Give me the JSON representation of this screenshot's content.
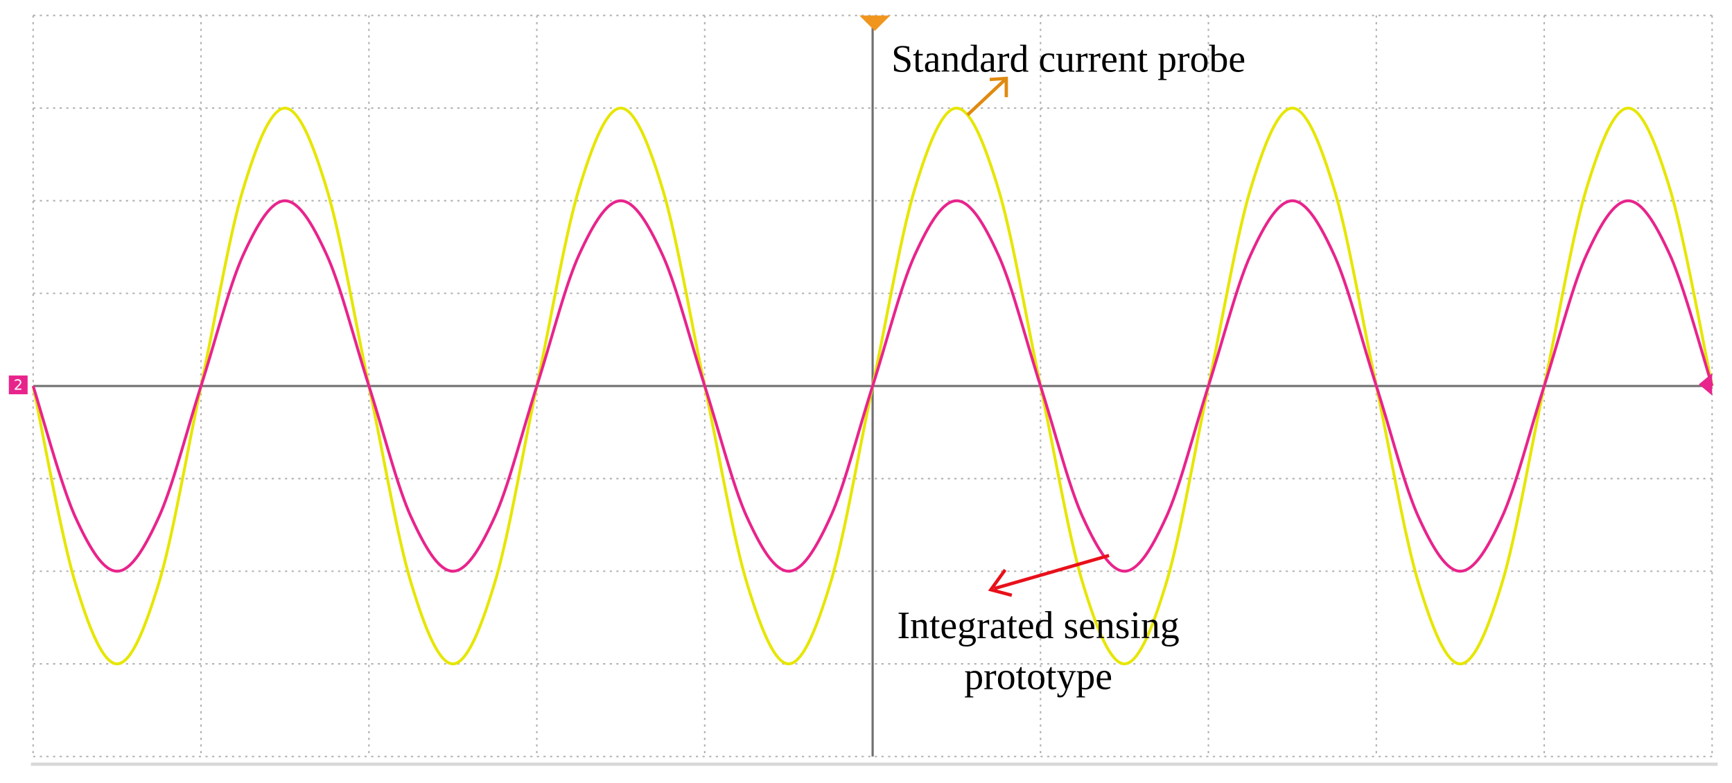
{
  "chart_data": {
    "type": "line",
    "x": [
      0,
      0.25,
      0.5,
      0.75,
      1,
      1.25,
      1.5,
      1.75,
      2,
      2.25,
      2.5,
      2.75,
      3,
      3.25,
      3.5,
      3.75,
      4,
      4.25,
      4.5,
      4.75,
      5,
      5.25,
      5.5,
      5.75,
      6,
      6.25,
      6.5,
      6.75,
      7,
      7.25,
      7.5,
      7.75,
      8,
      8.25,
      8.5,
      8.75,
      9,
      9.25,
      9.5,
      9.75,
      10
    ],
    "series": [
      {
        "name": "Standard current probe",
        "color": "#e6e600",
        "values": [
          0,
          -2.12,
          -3,
          -2.12,
          0,
          2.12,
          3,
          2.12,
          0,
          -2.12,
          -3,
          -2.12,
          0,
          2.12,
          3,
          2.12,
          0,
          -2.12,
          -3,
          -2.12,
          0,
          2.12,
          3,
          2.12,
          0,
          -2.12,
          -3,
          -2.12,
          0,
          2.12,
          3,
          2.12,
          0,
          -2.12,
          -3,
          -2.12,
          0,
          2.12,
          3,
          2.12,
          0
        ]
      },
      {
        "name": "Integrated sensing prototype",
        "lines": [
          "Integrated sensing",
          "prototype"
        ],
        "color": "#e8248c",
        "values": [
          0,
          -1.41,
          -2,
          -1.41,
          0,
          1.41,
          2,
          1.41,
          0,
          -1.41,
          -2,
          -1.41,
          0,
          1.41,
          2,
          1.41,
          0,
          -1.41,
          -2,
          -1.41,
          0,
          1.41,
          2,
          1.41,
          0,
          -1.41,
          -2,
          -1.41,
          0,
          1.41,
          2,
          1.41,
          0,
          -1.41,
          -2,
          -1.41,
          0,
          1.41,
          2,
          1.41,
          0
        ]
      }
    ],
    "channel_label": "2",
    "xlim": [
      0,
      10
    ],
    "xticks": [
      0,
      1,
      2,
      3,
      4,
      5,
      6,
      7,
      8,
      9,
      10
    ],
    "ylim": [
      -4,
      4
    ],
    "yticks": [
      -4,
      -3,
      -2,
      -1,
      0,
      1,
      2,
      3,
      4
    ],
    "grid": true
  }
}
